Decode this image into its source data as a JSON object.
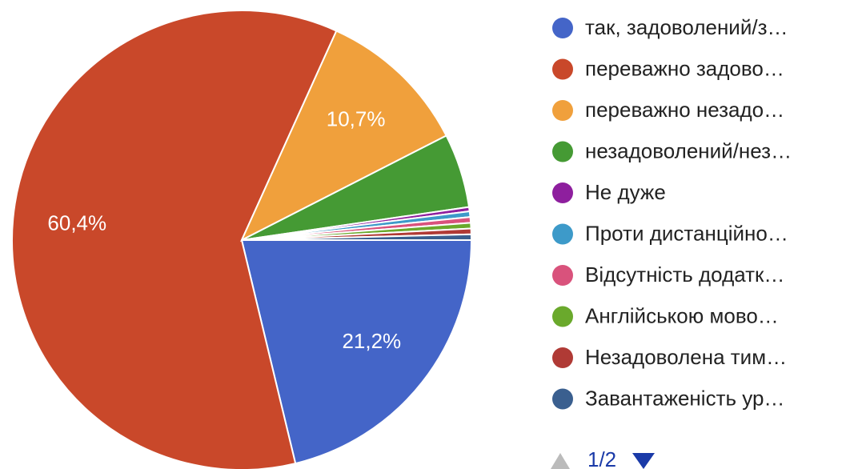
{
  "chart_data": {
    "type": "pie",
    "categories": [
      "так, задоволений/з…",
      "переважно задово…",
      "переважно незадо…",
      "незадоволений/нез…",
      "Не дуже",
      "Проти дистанційно…",
      "Відсутність додатк…",
      "Англійською мово…",
      "Незадоволена тим…",
      "Завантаженість ур…"
    ],
    "values": [
      21.2,
      60.4,
      10.7,
      5.2,
      0.3,
      0.4,
      0.4,
      0.4,
      0.4,
      0.4
    ],
    "value_labels": [
      "21,2%",
      "60,4%",
      "10,7%",
      null,
      null,
      null,
      null,
      null,
      null,
      null
    ],
    "colors": [
      "#4465c8",
      "#c9482a",
      "#f0a03c",
      "#459a34",
      "#8e1f9e",
      "#3d9ac9",
      "#d9527c",
      "#6aa92c",
      "#b03a35",
      "#3a5f8f"
    ],
    "pager": "1/2"
  }
}
